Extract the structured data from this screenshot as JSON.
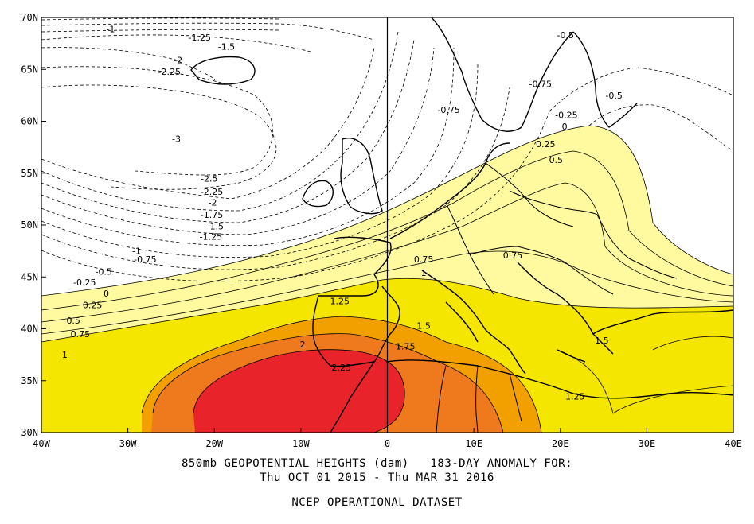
{
  "chart_data": {
    "type": "contour-map",
    "lon_range": [
      -40,
      40
    ],
    "lat_range": [
      30,
      70
    ],
    "x_ticks": [
      "40W",
      "30W",
      "20W",
      "10W",
      "0",
      "10E",
      "20E",
      "30E",
      "40E"
    ],
    "y_ticks": [
      "70N",
      "65N",
      "60N",
      "55N",
      "50N",
      "45N",
      "40N",
      "35N",
      "30N"
    ],
    "fill_levels": [
      {
        "min": 0,
        "max": 1,
        "color": "#fffaa0"
      },
      {
        "min": 1,
        "max": 1.5,
        "color": "#f5e600"
      },
      {
        "min": 1.5,
        "max": 2,
        "color": "#f2a000"
      },
      {
        "min": 2,
        "max": 2.25,
        "color": "#ef7a1e"
      },
      {
        "min": 2.25,
        "max": 3,
        "color": "#e8232a"
      }
    ],
    "contour_labels": [
      {
        "text": "-1",
        "lon": -32,
        "lat": 68.9
      },
      {
        "text": "-1.25",
        "lon": -21.7,
        "lat": 68.1
      },
      {
        "text": "-1.5",
        "lon": -18.6,
        "lat": 67.2
      },
      {
        "text": "-2",
        "lon": -24.2,
        "lat": 65.9
      },
      {
        "text": "-2.25",
        "lon": -25.2,
        "lat": 64.8
      },
      {
        "text": "-3",
        "lon": -24.4,
        "lat": 58.3
      },
      {
        "text": "-2.5",
        "lon": -20.6,
        "lat": 54.5
      },
      {
        "text": "-2.25",
        "lon": -20.3,
        "lat": 53.2
      },
      {
        "text": "-2",
        "lon": -20.2,
        "lat": 52.2
      },
      {
        "text": "-1.75",
        "lon": -20.3,
        "lat": 51.0
      },
      {
        "text": "-1.5",
        "lon": -19.9,
        "lat": 49.9
      },
      {
        "text": "-1.25",
        "lon": -20.4,
        "lat": 48.9
      },
      {
        "text": "-1",
        "lon": -29.0,
        "lat": 47.5
      },
      {
        "text": "-0.75",
        "lon": -28.0,
        "lat": 46.7
      },
      {
        "text": "-0.5",
        "lon": -32.8,
        "lat": 45.5
      },
      {
        "text": "-0.25",
        "lon": -35.0,
        "lat": 44.5
      },
      {
        "text": "0",
        "lon": -32.5,
        "lat": 43.4
      },
      {
        "text": "0.25",
        "lon": -34.1,
        "lat": 42.3
      },
      {
        "text": "0.5",
        "lon": -36.3,
        "lat": 40.8
      },
      {
        "text": "0.75",
        "lon": -35.5,
        "lat": 39.5
      },
      {
        "text": "1",
        "lon": -37.3,
        "lat": 37.5
      },
      {
        "text": "1.25",
        "lon": -5.5,
        "lat": 42.7
      },
      {
        "text": "1.5",
        "lon": 4.2,
        "lat": 40.3
      },
      {
        "text": "1.75",
        "lon": 2.1,
        "lat": 38.3
      },
      {
        "text": "2",
        "lon": -9.8,
        "lat": 38.5
      },
      {
        "text": "2.25",
        "lon": -5.3,
        "lat": 36.3
      },
      {
        "text": "0.75",
        "lon": 4.2,
        "lat": 46.7
      },
      {
        "text": "1",
        "lon": 4.2,
        "lat": 45.4
      },
      {
        "text": "0.75",
        "lon": 14.5,
        "lat": 47.1
      },
      {
        "text": "1.25",
        "lon": 21.7,
        "lat": 33.5
      },
      {
        "text": "1.5",
        "lon": 24.8,
        "lat": 38.9
      },
      {
        "text": "-0.5",
        "lon": 20.6,
        "lat": 68.3
      },
      {
        "text": "-0.75",
        "lon": 17.7,
        "lat": 63.6
      },
      {
        "text": "-0.75",
        "lon": 7.1,
        "lat": 61.1
      },
      {
        "text": "-0.5",
        "lon": 26.2,
        "lat": 62.5
      },
      {
        "text": "-0.25",
        "lon": 20.7,
        "lat": 60.6
      },
      {
        "text": "0",
        "lon": 20.5,
        "lat": 59.5
      },
      {
        "text": "0.25",
        "lon": 18.3,
        "lat": 57.8
      },
      {
        "text": "0.5",
        "lon": 19.5,
        "lat": 56.3
      }
    ]
  },
  "caption": {
    "line1": "850mb GEOPOTENTIAL HEIGHTS (dam)   183-DAY ANOMALY FOR:",
    "line2": "Thu OCT 01 2015 - Thu MAR 31 2016",
    "line3": "NCEP OPERATIONAL DATASET"
  }
}
